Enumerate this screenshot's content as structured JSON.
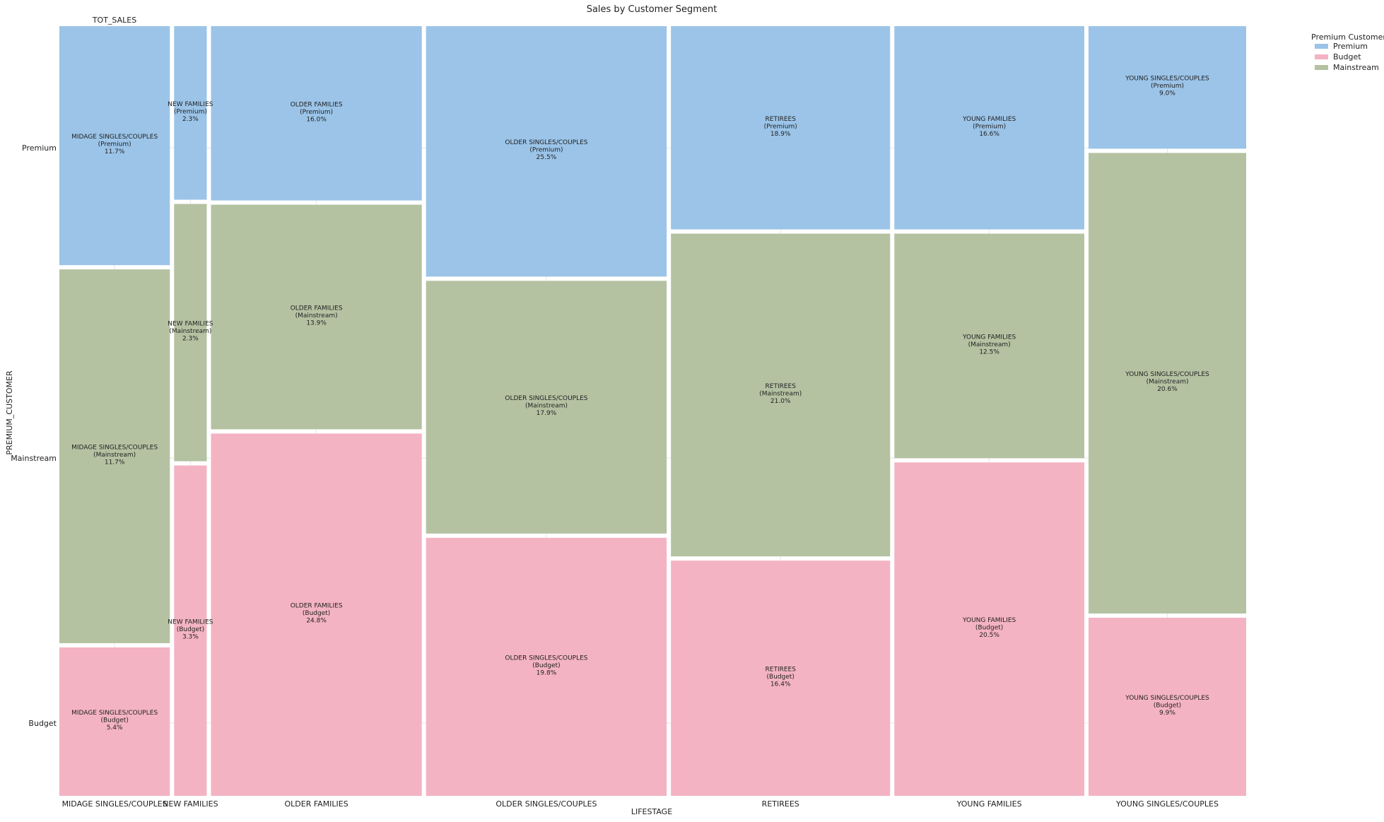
{
  "chart_data": {
    "type": "mosaic",
    "title": "Sales by Customer Segment",
    "corner_label": "TOT_SALES",
    "xlabel": "LIFESTAGE",
    "ylabel": "PREMIUM_CUSTOMER",
    "categories": [
      "MIDAGE SINGLES/COUPLES",
      "NEW FAMILIES",
      "OLDER FAMILIES",
      "OLDER SINGLES/COUPLES",
      "RETIREES",
      "YOUNG FAMILIES",
      "YOUNG SINGLES/COUPLES"
    ],
    "y_ticks": [
      "Premium",
      "Mainstream",
      "Budget"
    ],
    "legend": {
      "title": "Premium Customer",
      "placement": "top-right",
      "entries": [
        "Premium",
        "Budget",
        "Mainstream"
      ]
    },
    "colors": {
      "Premium": "#9bc4e8",
      "Mainstream": "#b4c2a2",
      "Budget": "#f4b3c3"
    },
    "column_shares": [
      9.37,
      2.77,
      17.88,
      20.41,
      18.59,
      16.11,
      13.37
    ],
    "segments": [
      {
        "lifestage": "MIDAGE SINGLES/COUPLES",
        "cells": [
          {
            "segment": "Premium",
            "share": 31.4,
            "label_line1": "MIDAGE SINGLES/COUPLES",
            "label_line2": "(Premium)",
            "label_line3": "11.7%"
          },
          {
            "segment": "Mainstream",
            "share": 49.1,
            "label_line1": "MIDAGE SINGLES/COUPLES",
            "label_line2": "(Mainstream)",
            "label_line3": "11.7%"
          },
          {
            "segment": "Budget",
            "share": 19.5,
            "label_line1": "MIDAGE SINGLES/COUPLES",
            "label_line2": "(Budget)",
            "label_line3": "5.4%"
          }
        ]
      },
      {
        "lifestage": "NEW FAMILIES",
        "cells": [
          {
            "segment": "Premium",
            "share": 22.8,
            "label_line1": "NEW FAMILIES",
            "label_line2": "(Premium)",
            "label_line3": "2.3%"
          },
          {
            "segment": "Mainstream",
            "share": 33.8,
            "label_line1": "NEW FAMILIES",
            "label_line2": "(Mainstream)",
            "label_line3": "2.3%"
          },
          {
            "segment": "Budget",
            "share": 43.4,
            "label_line1": "NEW FAMILIES",
            "label_line2": "(Budget)",
            "label_line3": "3.3%"
          }
        ]
      },
      {
        "lifestage": "OLDER FAMILIES",
        "cells": [
          {
            "segment": "Premium",
            "share": 22.9,
            "label_line1": "OLDER FAMILIES",
            "label_line2": "(Premium)",
            "label_line3": "16.0%"
          },
          {
            "segment": "Mainstream",
            "share": 29.5,
            "label_line1": "OLDER FAMILIES",
            "label_line2": "(Mainstream)",
            "label_line3": "13.9%"
          },
          {
            "segment": "Budget",
            "share": 47.6,
            "label_line1": "OLDER FAMILIES",
            "label_line2": "(Budget)",
            "label_line3": "24.8%"
          }
        ]
      },
      {
        "lifestage": "OLDER SINGLES/COUPLES",
        "cells": [
          {
            "segment": "Premium",
            "share": 32.9,
            "label_line1": "OLDER SINGLES/COUPLES",
            "label_line2": "(Premium)",
            "label_line3": "25.5%"
          },
          {
            "segment": "Mainstream",
            "share": 33.2,
            "label_line1": "OLDER SINGLES/COUPLES",
            "label_line2": "(Mainstream)",
            "label_line3": "17.9%"
          },
          {
            "segment": "Budget",
            "share": 33.9,
            "label_line1": "OLDER SINGLES/COUPLES",
            "label_line2": "(Budget)",
            "label_line3": "19.8%"
          }
        ]
      },
      {
        "lifestage": "RETIREES",
        "cells": [
          {
            "segment": "Premium",
            "share": 26.7,
            "label_line1": "RETIREES",
            "label_line2": "(Premium)",
            "label_line3": "18.9%"
          },
          {
            "segment": "Mainstream",
            "share": 42.4,
            "label_line1": "RETIREES",
            "label_line2": "(Mainstream)",
            "label_line3": "21.0%"
          },
          {
            "segment": "Budget",
            "share": 30.9,
            "label_line1": "RETIREES",
            "label_line2": "(Budget)",
            "label_line3": "16.4%"
          }
        ]
      },
      {
        "lifestage": "YOUNG FAMILIES",
        "cells": [
          {
            "segment": "Premium",
            "share": 26.7,
            "label_line1": "YOUNG FAMILIES",
            "label_line2": "(Premium)",
            "label_line3": "16.6%"
          },
          {
            "segment": "Mainstream",
            "share": 29.5,
            "label_line1": "YOUNG FAMILIES",
            "label_line2": "(Mainstream)",
            "label_line3": "12.5%"
          },
          {
            "segment": "Budget",
            "share": 43.8,
            "label_line1": "YOUNG FAMILIES",
            "label_line2": "(Budget)",
            "label_line3": "20.5%"
          }
        ]
      },
      {
        "lifestage": "YOUNG SINGLES/COUPLES",
        "cells": [
          {
            "segment": "Premium",
            "share": 16.1,
            "label_line1": "YOUNG SINGLES/COUPLES",
            "label_line2": "(Premium)",
            "label_line3": "9.0%"
          },
          {
            "segment": "Mainstream",
            "share": 60.5,
            "label_line1": "YOUNG SINGLES/COUPLES",
            "label_line2": "(Mainstream)",
            "label_line3": "20.6%"
          },
          {
            "segment": "Budget",
            "share": 23.4,
            "label_line1": "YOUNG SINGLES/COUPLES",
            "label_line2": "(Budget)",
            "label_line3": "9.9%"
          }
        ]
      }
    ]
  }
}
